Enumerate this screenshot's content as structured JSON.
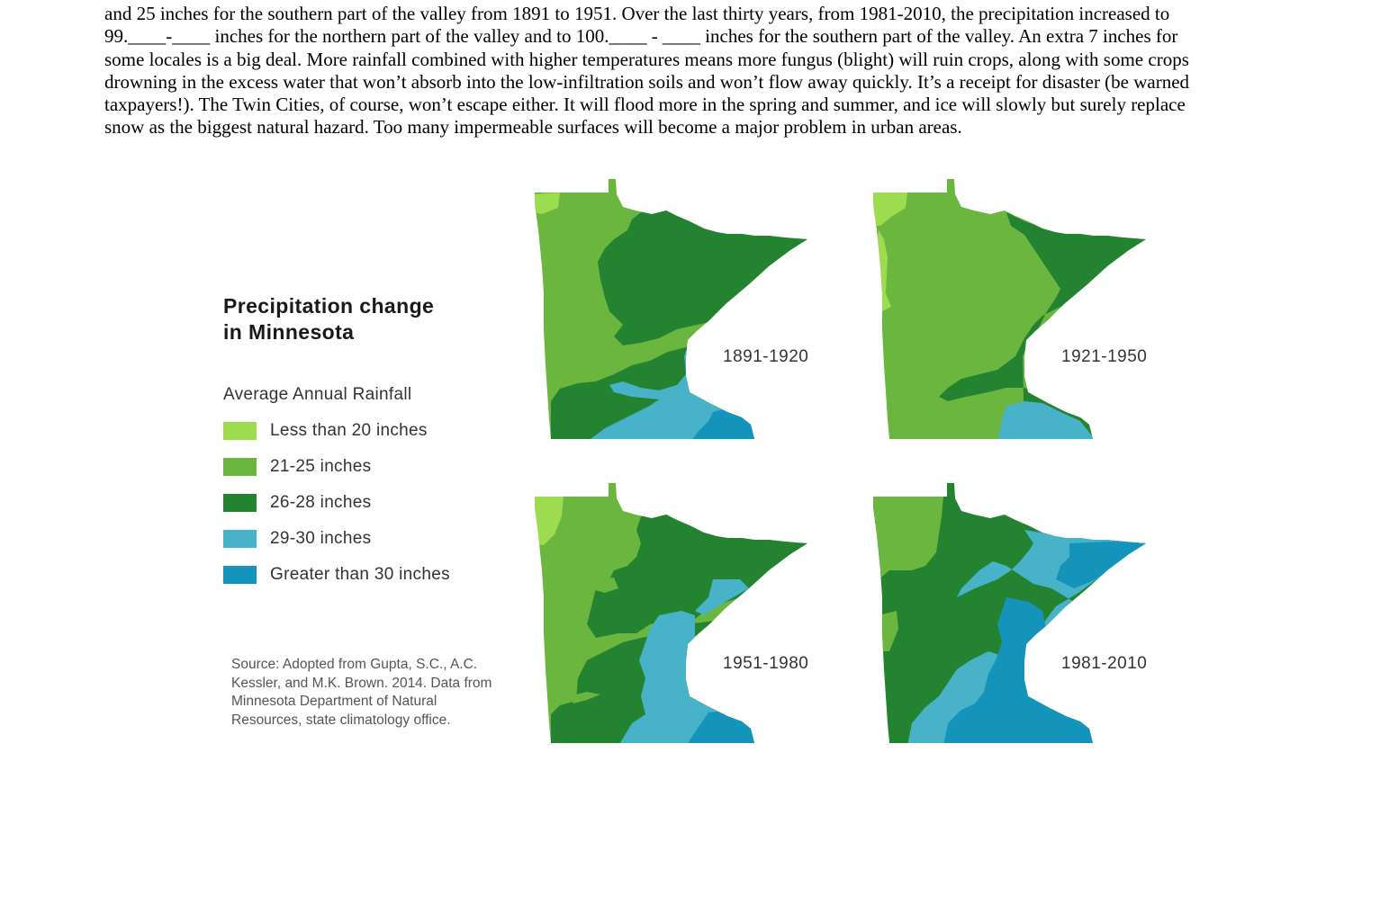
{
  "paragraph": {
    "lines": [
      "and 25 inches for the southern part of the valley from 1891 to 1951. Over the last thirty years, from 1981-2010, the precipitation increased to",
      "99.____-____ inches for the northern part of the valley and to 100.____ - ____ inches for the southern part of the valley. An extra 7 inches for",
      "some locales is a big deal. More rainfall combined with higher temperatures means more fungus (blight) will ruin crops, along with some crops",
      "drowning in the excess water that won’t absorb into the low-infiltration soils and won’t flow away quickly. It’s a receipt for disaster (be warned",
      "taxpayers!). The Twin Cities, of course, won’t escape either. It will flood more in the spring and summer, and ice will slowly but surely replace",
      "snow as the biggest natural hazard. Too many impermeable surfaces will become a major problem in urban areas."
    ]
  },
  "figure": {
    "title_line1": "Precipitation change",
    "title_line2": "in Minnesota",
    "legend_title": "Average Annual Rainfall",
    "legend": [
      {
        "label": "Less than 20 inches",
        "color": "#9cdc4e"
      },
      {
        "label": "21-25 inches",
        "color": "#6bb63f"
      },
      {
        "label": "26-28 inches",
        "color": "#238331"
      },
      {
        "label": "29-30 inches",
        "color": "#48b3c8"
      },
      {
        "label": "Greater than 30 inches",
        "color": "#1493bb"
      }
    ],
    "source": "Source: Adopted from Gupta, S.C., A.C. Kessler, and M.K. Brown. 2014. Data from Minnesota Department of Natural Resources, state climatology office.",
    "maps": [
      {
        "period": "1891-1920"
      },
      {
        "period": "1921-1950"
      },
      {
        "period": "1951-1980"
      },
      {
        "period": "1981-2010"
      }
    ]
  }
}
